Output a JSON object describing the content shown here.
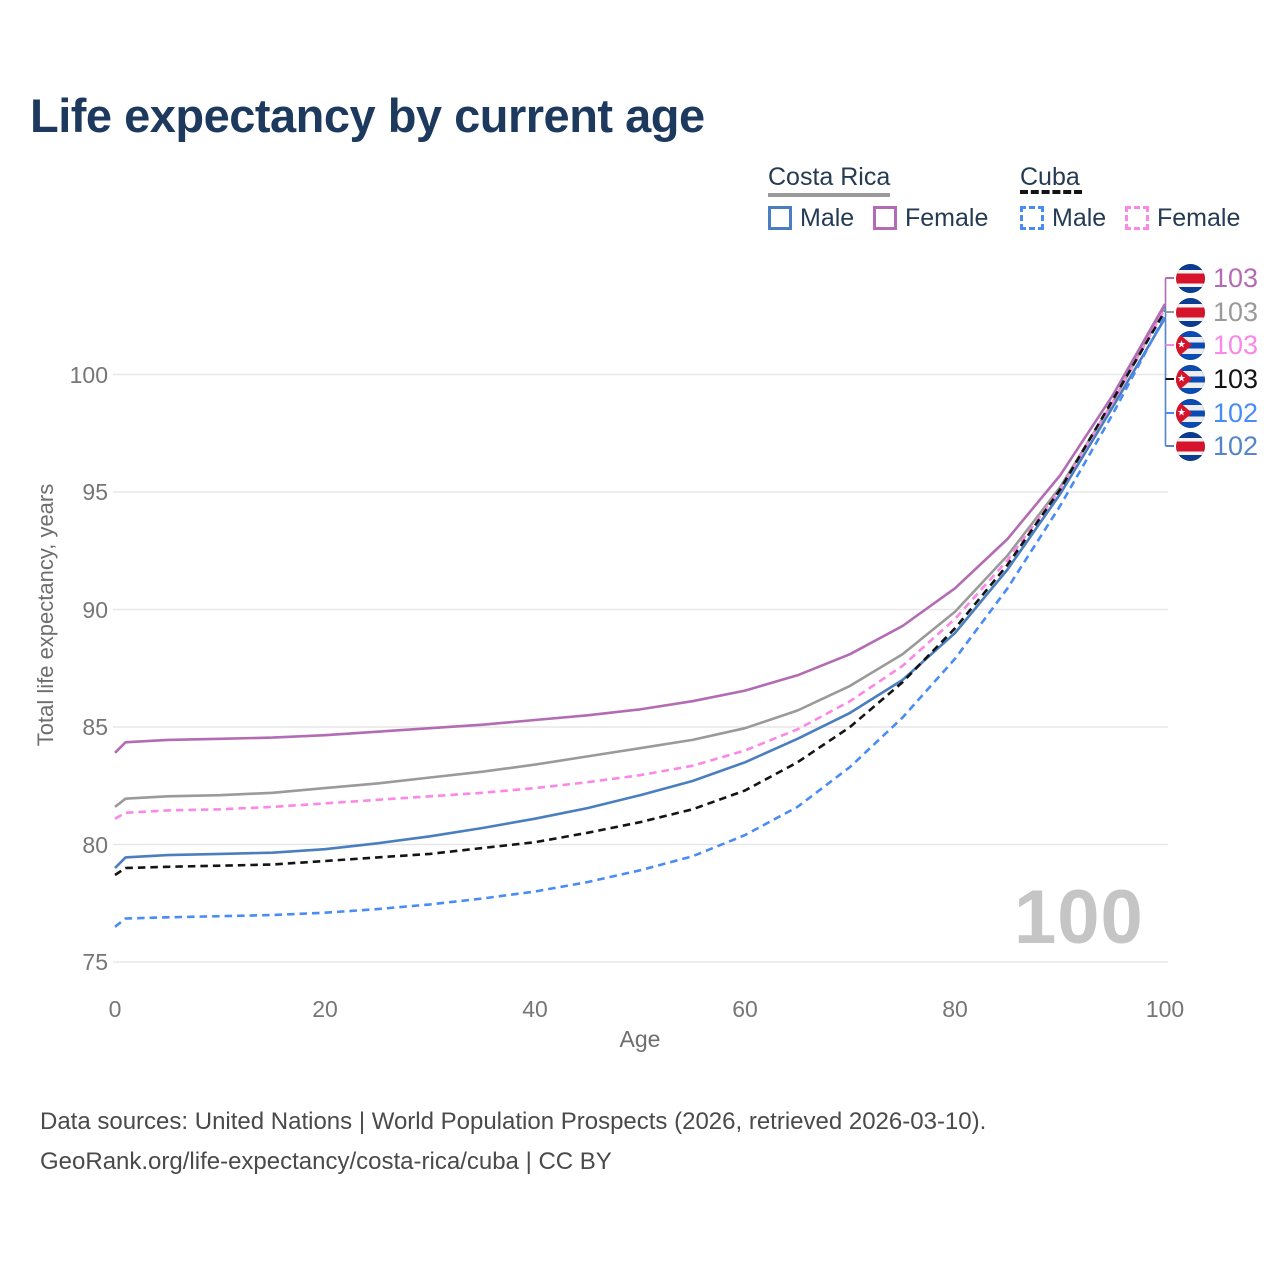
{
  "title": "Life expectancy by current age",
  "legend": {
    "groups": [
      {
        "label": "Costa Rica",
        "line_style": "solid",
        "underline_color": "#9a9a9a",
        "items": [
          {
            "label": "Male",
            "color": "#4a7ebf"
          },
          {
            "label": "Female",
            "color": "#b36cb4"
          }
        ]
      },
      {
        "label": "Cuba",
        "line_style": "dashed",
        "underline_color": "#141414",
        "items": [
          {
            "label": "Male",
            "color": "#4a8cf5"
          },
          {
            "label": "Female",
            "color": "#fb87e6"
          }
        ]
      }
    ]
  },
  "chart_data": {
    "type": "line",
    "title": "Life expectancy by current age",
    "xlabel": "Age",
    "ylabel": "Total life expectancy, years",
    "x_ticks": [
      0,
      20,
      40,
      60,
      80,
      100
    ],
    "y_ticks": [
      75,
      80,
      85,
      90,
      95,
      100
    ],
    "xlim": [
      0,
      100
    ],
    "ylim": [
      75,
      104.8
    ],
    "grid": "horizontal",
    "watermark": "100",
    "x": [
      0,
      1,
      5,
      10,
      15,
      20,
      25,
      30,
      35,
      40,
      45,
      50,
      55,
      60,
      65,
      70,
      75,
      80,
      85,
      90,
      95,
      100
    ],
    "series": [
      {
        "name": "Costa Rica Total",
        "country": "Costa Rica",
        "group": "Total",
        "color": "#9a9a9a",
        "dash": false,
        "values": [
          81.6,
          81.95,
          82.05,
          82.1,
          82.2,
          82.4,
          82.6,
          82.85,
          83.1,
          83.4,
          83.75,
          84.1,
          84.45,
          84.95,
          85.7,
          86.75,
          88.1,
          89.9,
          92.3,
          95.2,
          98.8,
          102.9
        ]
      },
      {
        "name": "Costa Rica Female",
        "country": "Costa Rica",
        "group": "Female",
        "color": "#b36cb4",
        "dash": false,
        "values": [
          83.9,
          84.35,
          84.45,
          84.5,
          84.55,
          84.65,
          84.8,
          84.95,
          85.1,
          85.3,
          85.5,
          85.75,
          86.1,
          86.55,
          87.2,
          88.1,
          89.3,
          90.9,
          93.0,
          95.7,
          99.1,
          103.0
        ]
      },
      {
        "name": "Costa Rica Male",
        "country": "Costa Rica",
        "group": "Male",
        "color": "#4a7ebf",
        "dash": false,
        "values": [
          79.0,
          79.45,
          79.55,
          79.6,
          79.65,
          79.8,
          80.05,
          80.35,
          80.7,
          81.1,
          81.55,
          82.1,
          82.7,
          83.5,
          84.5,
          85.6,
          87.0,
          89.0,
          91.7,
          94.9,
          98.6,
          102.4
        ]
      },
      {
        "name": "Cuba Female",
        "country": "Cuba",
        "group": "Female",
        "color": "#fb87e6",
        "dash": true,
        "values": [
          81.1,
          81.35,
          81.45,
          81.5,
          81.6,
          81.75,
          81.9,
          82.05,
          82.2,
          82.4,
          82.65,
          82.95,
          83.35,
          84.0,
          84.9,
          86.1,
          87.6,
          89.6,
          92.1,
          95.1,
          98.8,
          102.8
        ]
      },
      {
        "name": "Cuba Total",
        "country": "Cuba",
        "group": "Total",
        "color": "#141414",
        "dash": true,
        "values": [
          78.7,
          79.0,
          79.05,
          79.1,
          79.15,
          79.3,
          79.45,
          79.6,
          79.85,
          80.1,
          80.5,
          80.95,
          81.5,
          82.3,
          83.5,
          85.0,
          86.9,
          89.2,
          91.9,
          95.1,
          98.9,
          102.7
        ]
      },
      {
        "name": "Cuba Male",
        "country": "Cuba",
        "group": "Male",
        "color": "#4a8cf5",
        "dash": true,
        "values": [
          76.5,
          76.85,
          76.9,
          76.95,
          77.0,
          77.1,
          77.25,
          77.45,
          77.7,
          78.0,
          78.4,
          78.9,
          79.5,
          80.4,
          81.6,
          83.3,
          85.4,
          87.9,
          90.9,
          94.4,
          98.3,
          102.5
        ]
      }
    ]
  },
  "end_labels": [
    {
      "flag": "costa-rica",
      "value": "103",
      "color": "#b36cb4",
      "series": "Costa Rica Female"
    },
    {
      "flag": "costa-rica",
      "value": "103",
      "color": "#9a9a9a",
      "series": "Costa Rica Total"
    },
    {
      "flag": "cuba",
      "value": "103",
      "color": "#fb87e6",
      "series": "Cuba Female"
    },
    {
      "flag": "cuba",
      "value": "103",
      "color": "#141414",
      "series": "Cuba Total"
    },
    {
      "flag": "cuba",
      "value": "102",
      "color": "#4a8cf5",
      "series": "Cuba Male"
    },
    {
      "flag": "costa-rica",
      "value": "102",
      "color": "#5585c8",
      "series": "Costa Rica Male"
    }
  ],
  "footer": {
    "line1": "Data sources: United Nations | World Population Prospects (2026, retrieved 2026-03-10).",
    "line2": "GeoRank.org/life-expectancy/costa-rica/cuba | CC BY"
  }
}
